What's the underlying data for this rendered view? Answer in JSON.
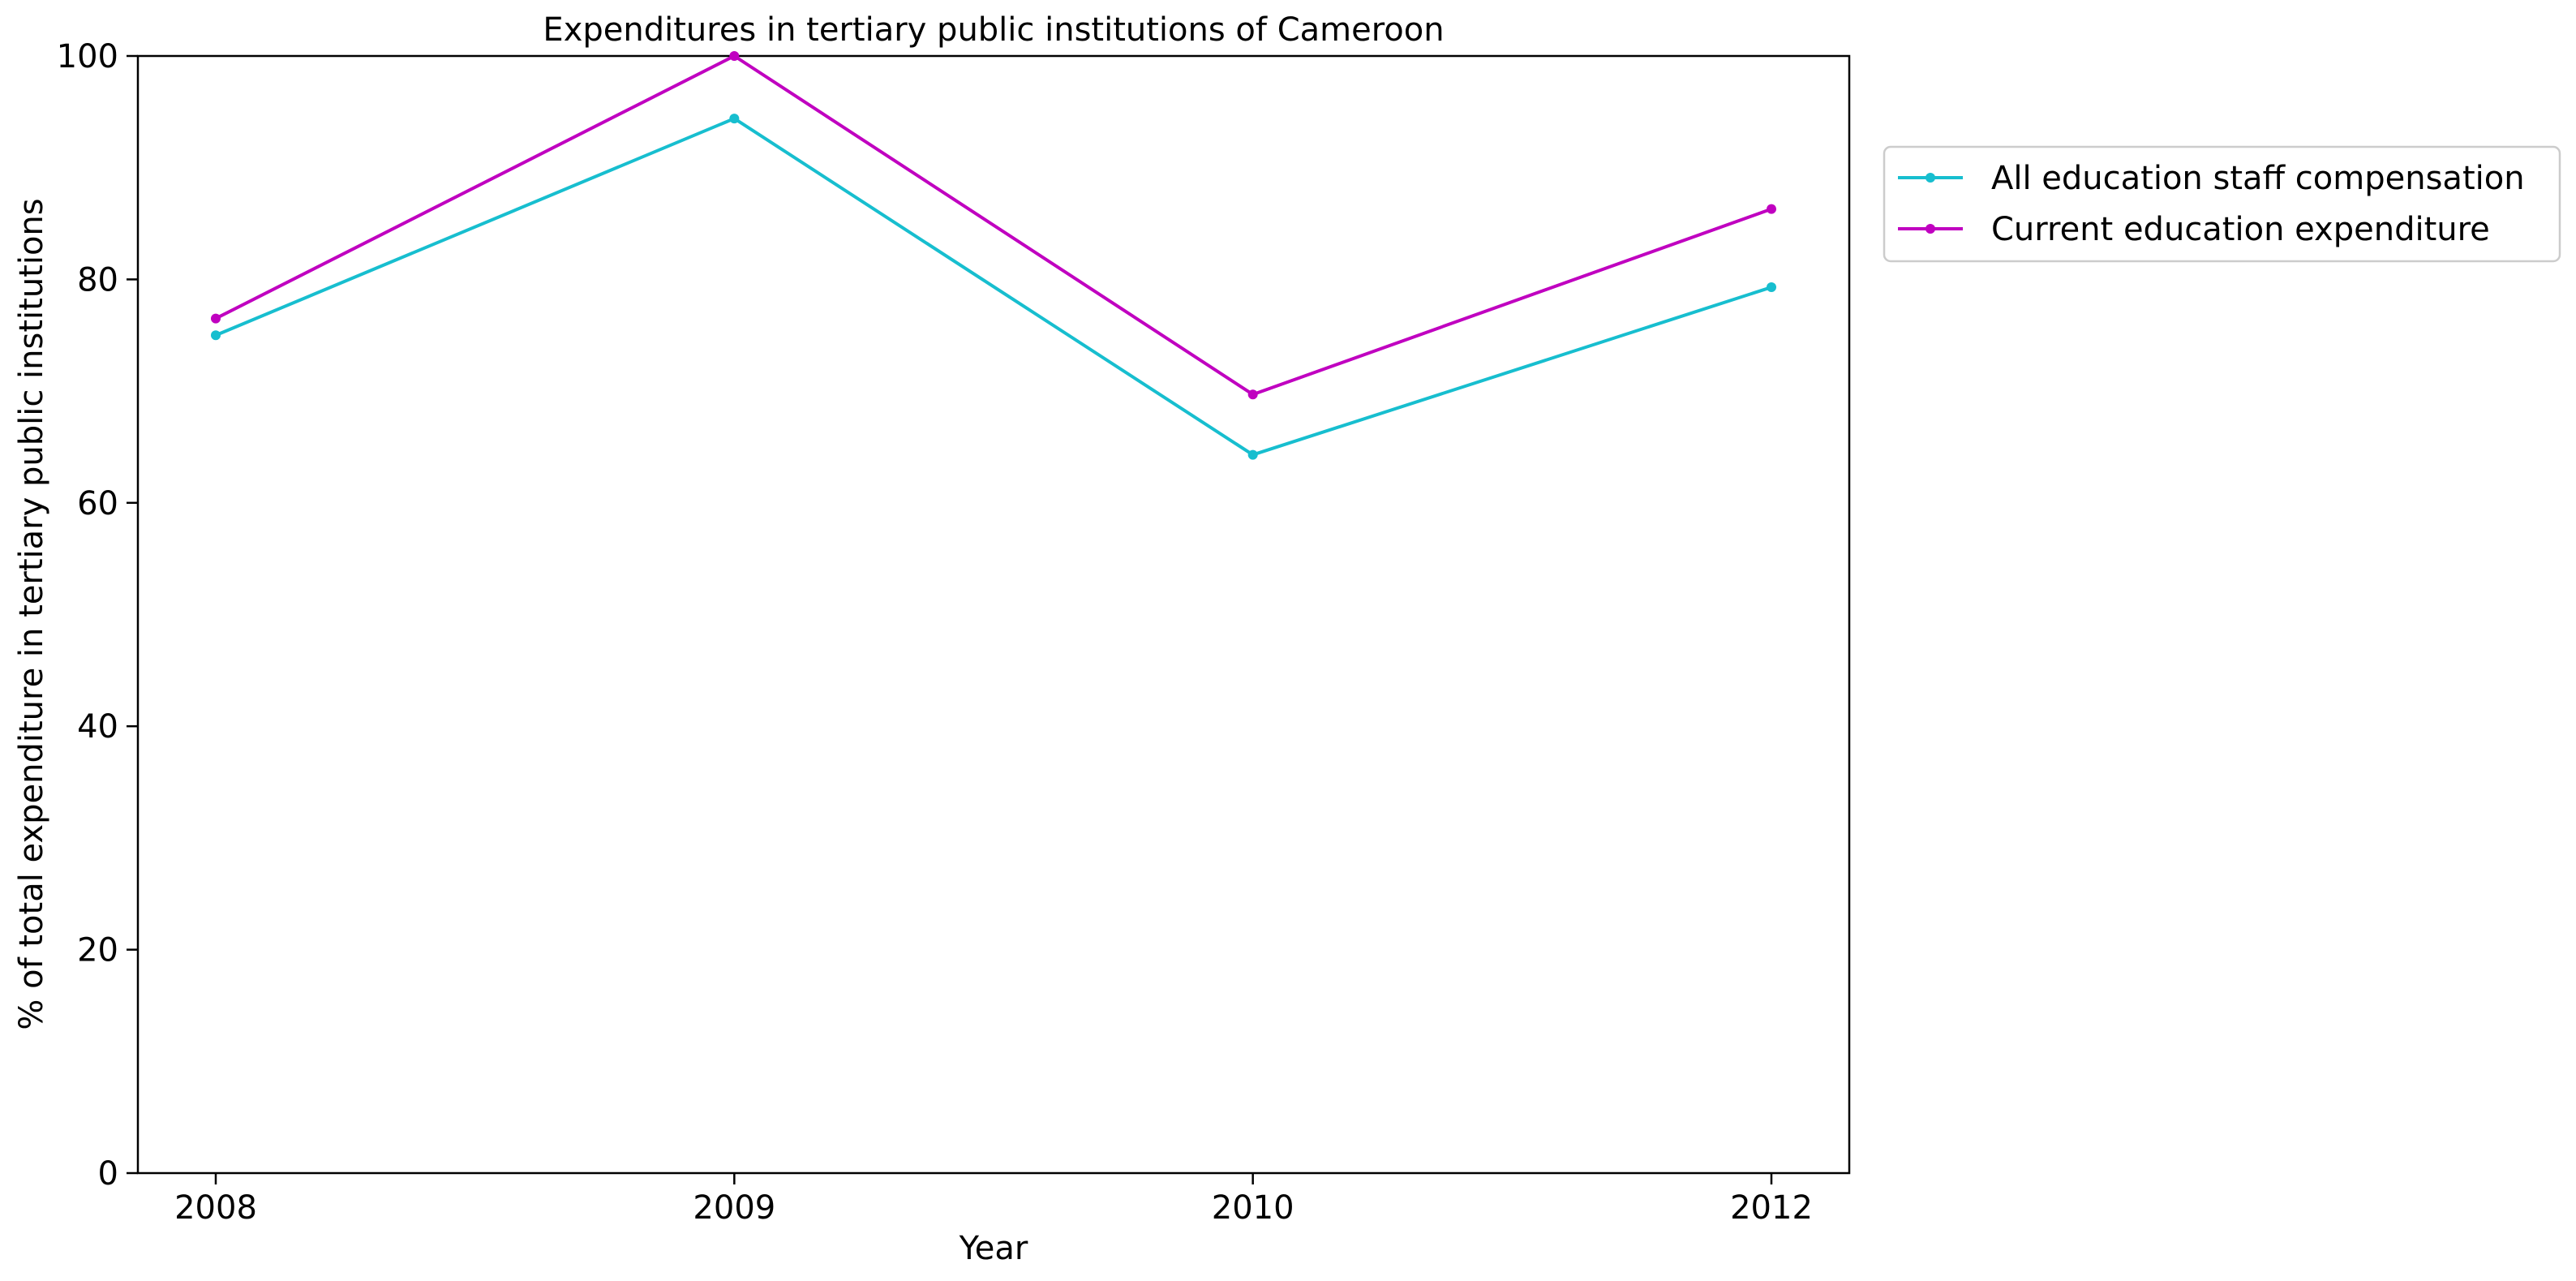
{
  "chart_data": {
    "type": "line",
    "title": "Expenditures in tertiary public institutions of Cameroon",
    "xlabel": "Year",
    "ylabel": "% of total expenditure in tertiary public institutions",
    "categories": [
      "2008",
      "2009",
      "2010",
      "2012"
    ],
    "ylim": [
      0,
      100
    ],
    "yticks": [
      "0",
      "20",
      "40",
      "60",
      "80",
      "100"
    ],
    "grid": false,
    "legend_position": "outside-right-top",
    "series": [
      {
        "name": "All education staff compensation",
        "color": "#17becf",
        "marker": "dot",
        "values": [
          75.0,
          94.4,
          64.3,
          79.3
        ]
      },
      {
        "name": "Current education expenditure",
        "color": "#c000c0",
        "marker": "dot",
        "values": [
          76.5,
          100.0,
          69.7,
          86.3
        ]
      }
    ]
  }
}
